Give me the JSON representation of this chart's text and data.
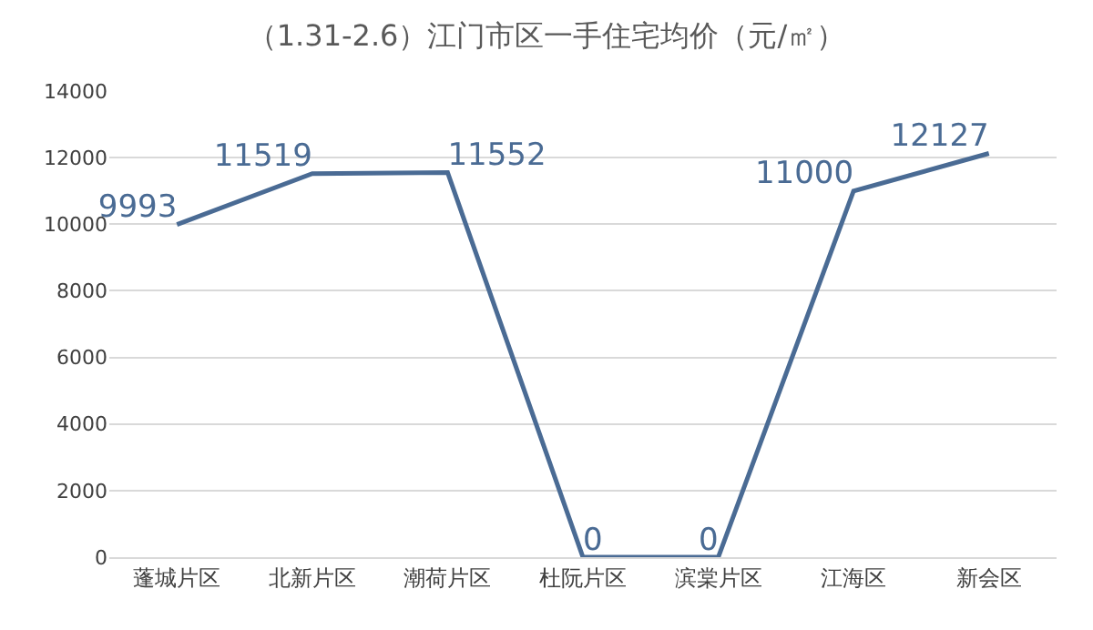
{
  "chart_data": {
    "type": "line",
    "title": "（1.31-2.6）江门市区一手住宅均价（元/㎡）",
    "categories": [
      "蓬城片区",
      "北新片区",
      "潮荷片区",
      "杜阮片区",
      "滨棠片区",
      "江海区",
      "新会区"
    ],
    "series": [
      {
        "color": "#4a6b94",
        "values": [
          9993,
          11519,
          11552,
          0,
          0,
          11000,
          12127
        ]
      }
    ],
    "ylim": [
      0,
      14000
    ],
    "yticks": [
      0,
      2000,
      4000,
      6000,
      8000,
      10000,
      12000,
      14000
    ],
    "grid": "y",
    "legend": false,
    "marker": "none",
    "line_style": "solid",
    "data_labels": true
  }
}
